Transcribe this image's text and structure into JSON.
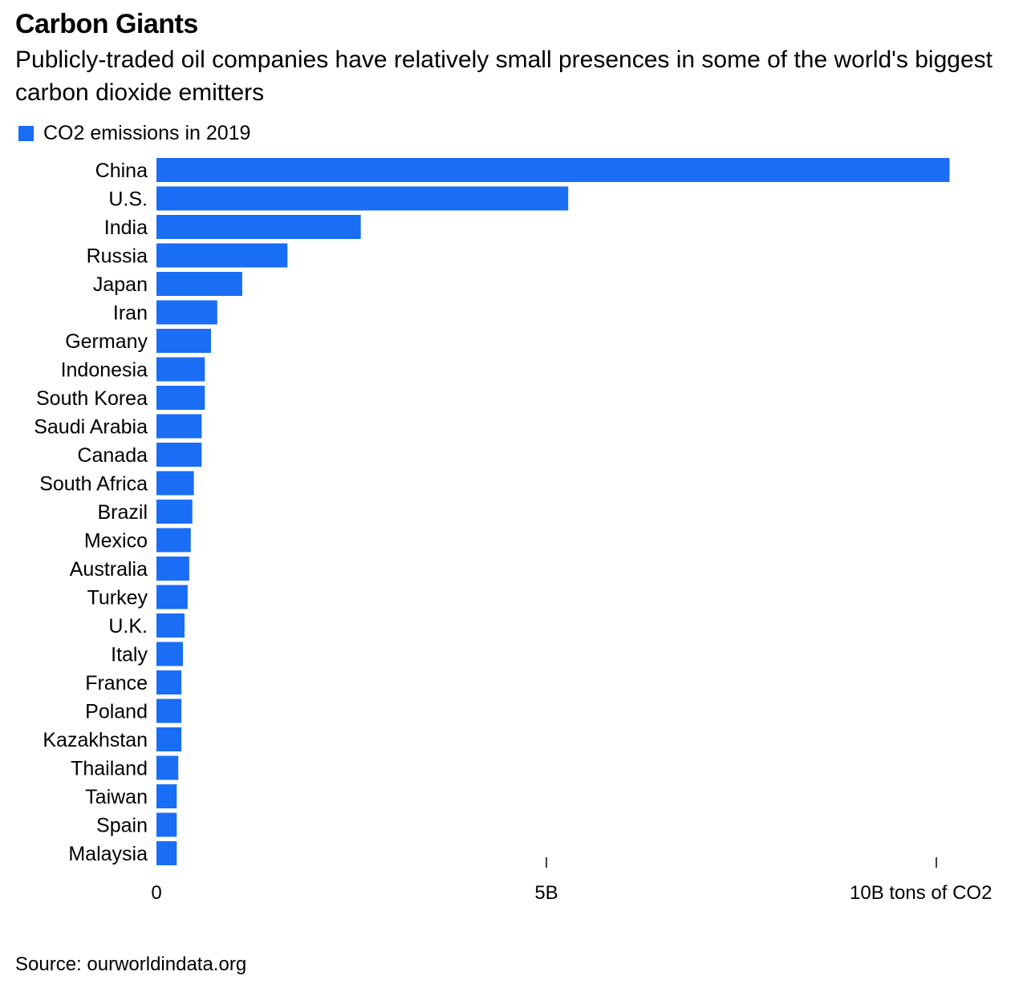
{
  "header": {
    "title": "Carbon Giants",
    "subtitle": "Publicly-traded oil companies have relatively small presences in some of the world's biggest carbon dioxide emitters"
  },
  "legend": {
    "label": "CO2 emissions in 2019",
    "color": "#1a6ef5"
  },
  "footer": {
    "source": "Source: ourworldindata.org"
  },
  "chart_data": {
    "type": "bar",
    "orientation": "horizontal",
    "categories": [
      "China",
      "U.S.",
      "India",
      "Russia",
      "Japan",
      "Iran",
      "Germany",
      "Indonesia",
      "South Korea",
      "Saudi Arabia",
      "Canada",
      "South Africa",
      "Brazil",
      "Mexico",
      "Australia",
      "Turkey",
      "U.K.",
      "Italy",
      "France",
      "Poland",
      "Kazakhstan",
      "Thailand",
      "Taiwan",
      "Spain",
      "Malaysia"
    ],
    "series": [
      {
        "name": "CO2 emissions in 2019",
        "values": [
          10.17,
          5.28,
          2.62,
          1.68,
          1.1,
          0.78,
          0.7,
          0.62,
          0.62,
          0.58,
          0.58,
          0.48,
          0.46,
          0.44,
          0.42,
          0.4,
          0.36,
          0.34,
          0.32,
          0.32,
          0.32,
          0.28,
          0.26,
          0.26,
          0.26
        ]
      }
    ],
    "xlim": [
      0,
      10
    ],
    "xticks": [
      0,
      5,
      10
    ],
    "xtick_labels": [
      "0",
      "5B",
      "10B tons of CO2"
    ],
    "bar_color": "#1a6ef5",
    "grid": false,
    "legend_position": "top-left"
  }
}
